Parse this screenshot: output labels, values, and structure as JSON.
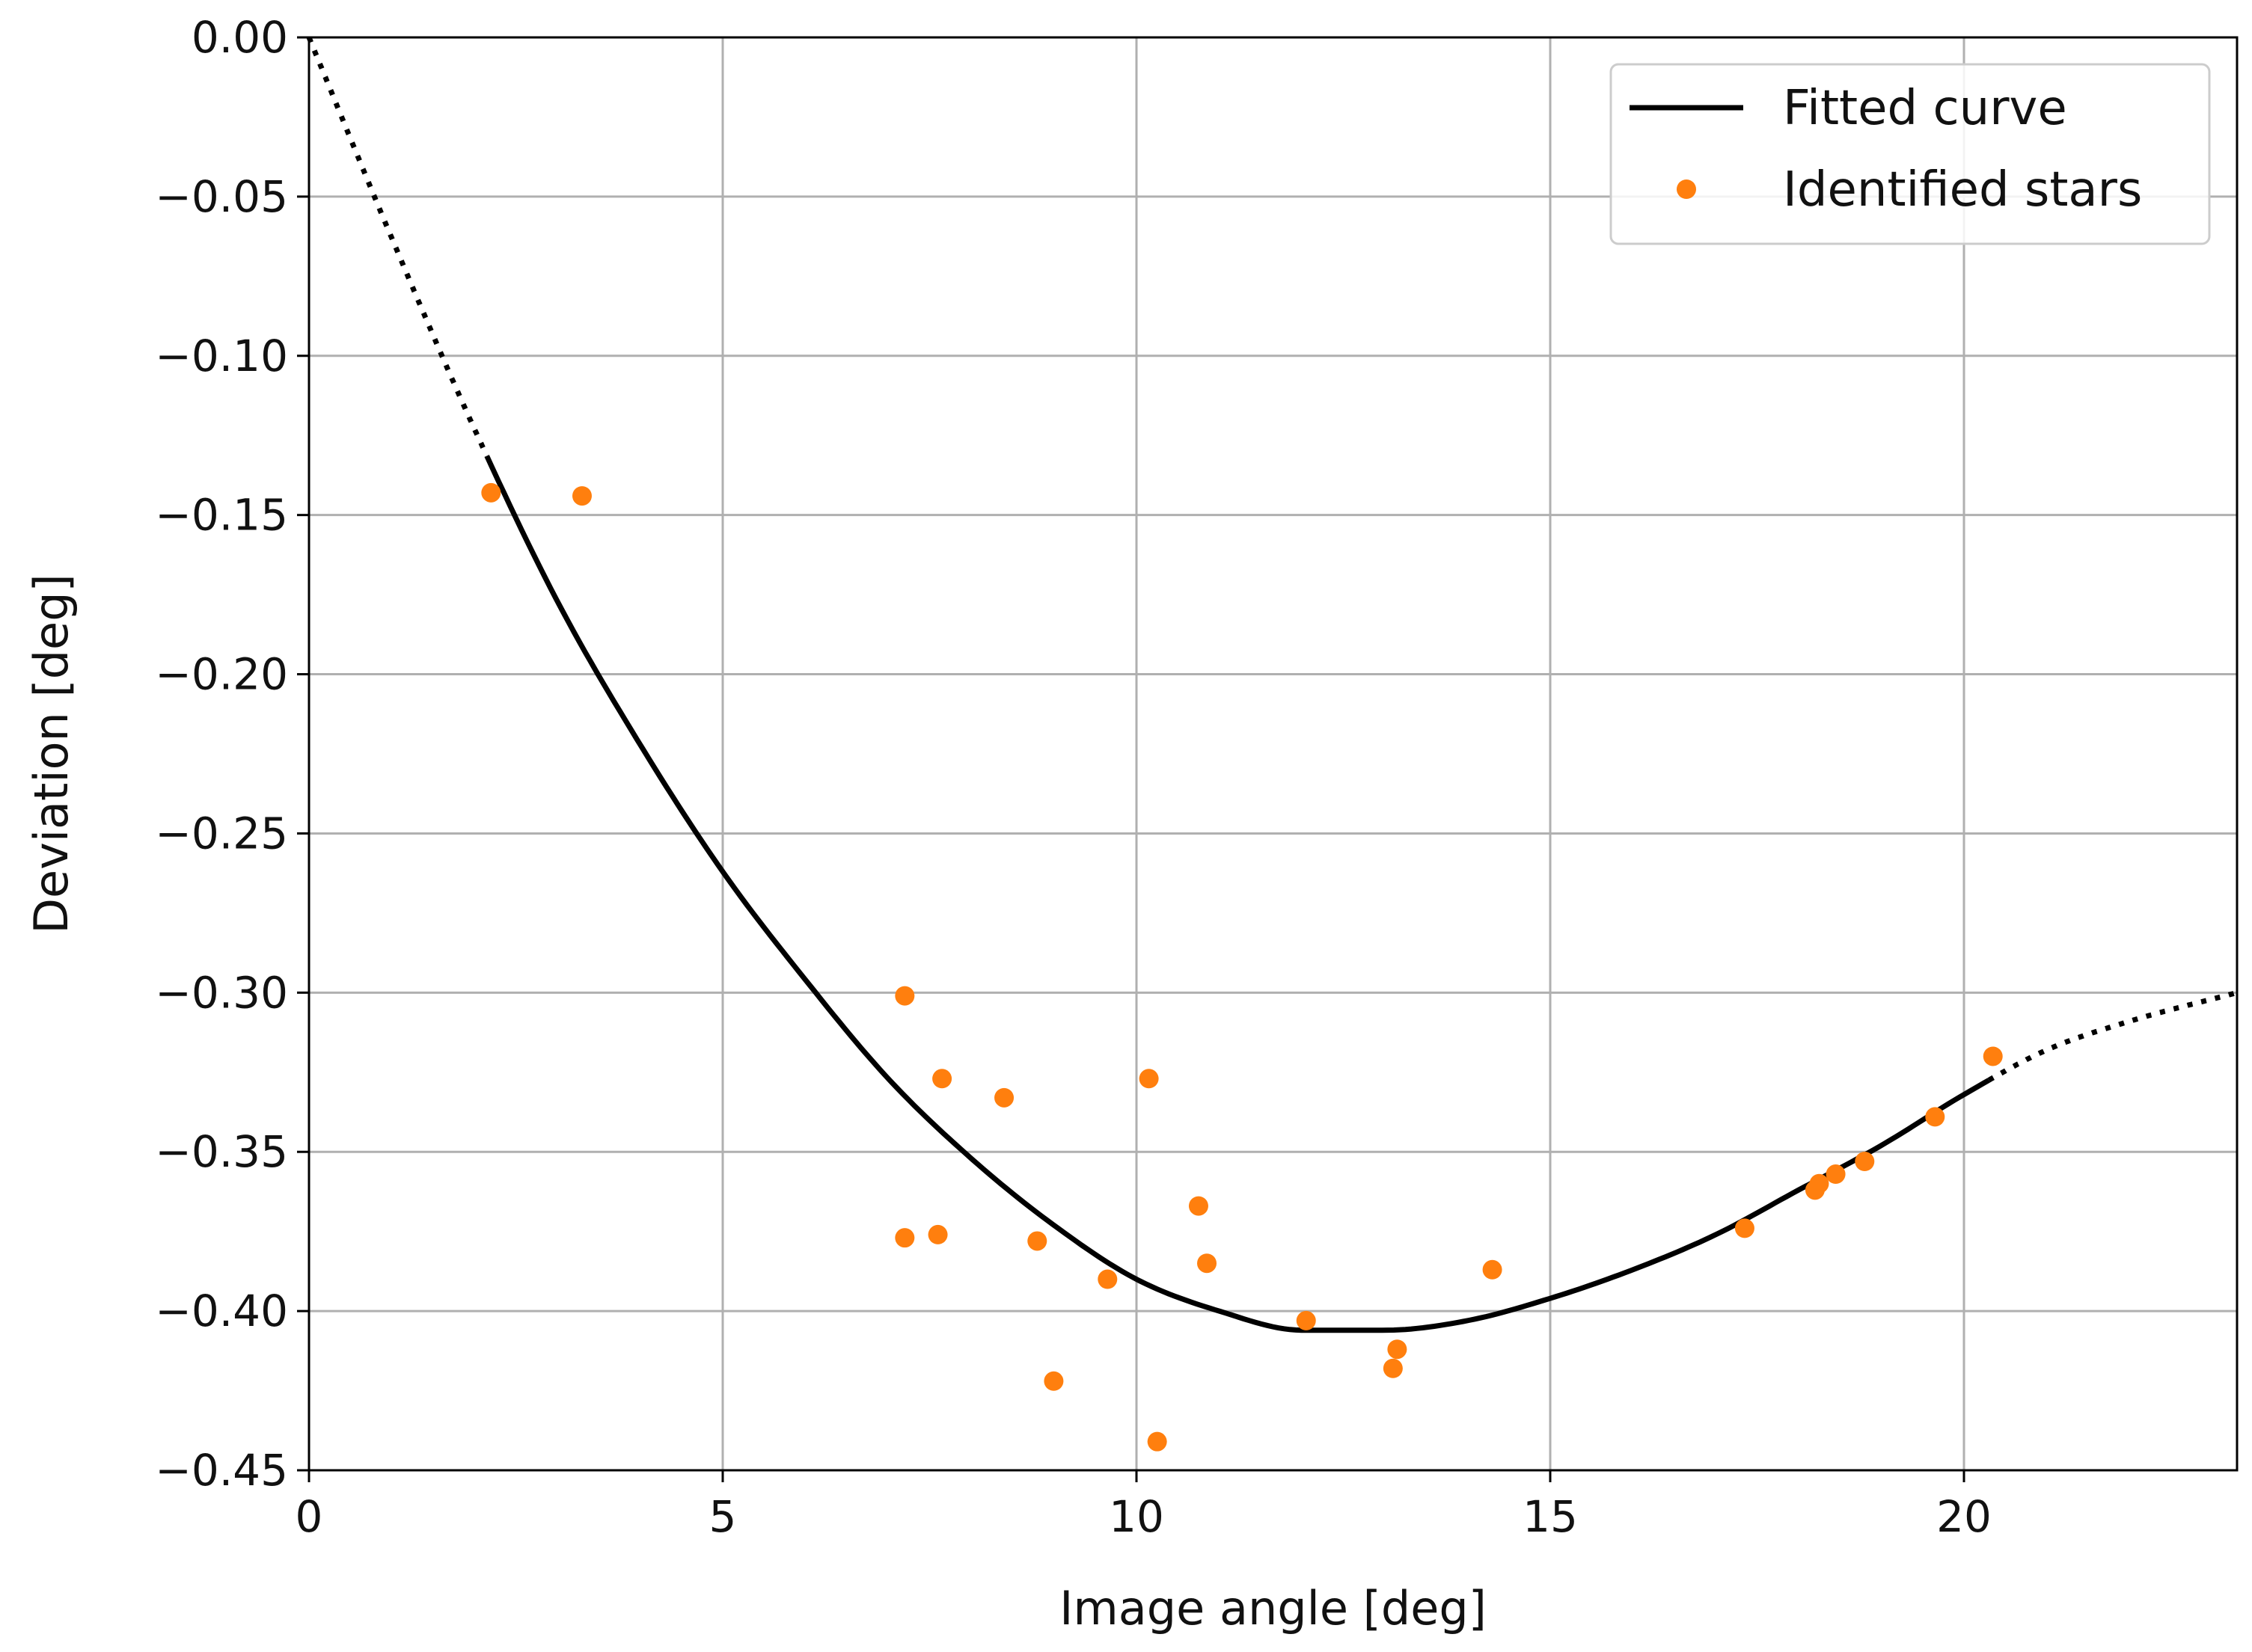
{
  "chart_data": {
    "type": "scatter",
    "title": "",
    "xlabel": "Image angle [deg]",
    "ylabel": "Deviation [deg]",
    "xlim": [
      0,
      23.3
    ],
    "ylim": [
      -0.45,
      0.0
    ],
    "grid": true,
    "xticks": [
      0,
      5,
      10,
      15,
      20
    ],
    "xtick_labels": [
      "0",
      "5",
      "10",
      "15",
      "20"
    ],
    "yticks": [
      0.0,
      -0.05,
      -0.1,
      -0.15,
      -0.2,
      -0.25,
      -0.3,
      -0.35,
      -0.4,
      -0.45
    ],
    "ytick_labels": [
      "0.00",
      "−0.05",
      "−0.10",
      "−0.15",
      "−0.20",
      "−0.25",
      "−0.30",
      "−0.35",
      "−0.40",
      "−0.45"
    ],
    "legend": {
      "placement": "top-right",
      "entries": [
        {
          "label": "Fitted curve",
          "marker": "line",
          "color": "#000000"
        },
        {
          "label": "Identified stars",
          "marker": "dot",
          "color": "#ff7f0e"
        }
      ]
    },
    "series": [
      {
        "name": "Fitted curve",
        "kind": "line",
        "color": "#000000",
        "solid_range": [
          2.15,
          20.3
        ],
        "dotted_extension_range": [
          0.0,
          23.3
        ],
        "x": [
          0,
          1,
          2,
          3,
          4,
          5,
          6,
          7,
          8,
          9,
          10,
          11,
          12,
          13,
          14,
          15,
          16,
          17,
          18,
          19,
          20,
          21,
          22,
          23.3
        ],
        "y": [
          0.0,
          -0.063,
          -0.123,
          -0.177,
          -0.222,
          -0.262,
          -0.296,
          -0.327,
          -0.352,
          -0.373,
          -0.39,
          -0.4,
          -0.406,
          -0.406,
          -0.403,
          -0.396,
          -0.387,
          -0.376,
          -0.362,
          -0.348,
          -0.332,
          -0.318,
          -0.309,
          -0.3
        ]
      },
      {
        "name": "Identified stars",
        "kind": "scatter",
        "color": "#ff7f0e",
        "x": [
          2.2,
          3.3,
          7.2,
          7.2,
          7.6,
          7.65,
          8.4,
          8.8,
          9.0,
          9.65,
          10.15,
          10.25,
          10.75,
          10.85,
          12.05,
          13.1,
          13.15,
          14.3,
          17.35,
          18.2,
          18.25,
          18.45,
          18.8,
          19.65,
          20.35
        ],
        "y": [
          -0.143,
          -0.144,
          -0.301,
          -0.377,
          -0.376,
          -0.327,
          -0.333,
          -0.378,
          -0.422,
          -0.39,
          -0.327,
          -0.441,
          -0.367,
          -0.385,
          -0.403,
          -0.418,
          -0.412,
          -0.387,
          -0.374,
          -0.362,
          -0.36,
          -0.357,
          -0.353,
          -0.339,
          -0.32
        ]
      }
    ]
  }
}
